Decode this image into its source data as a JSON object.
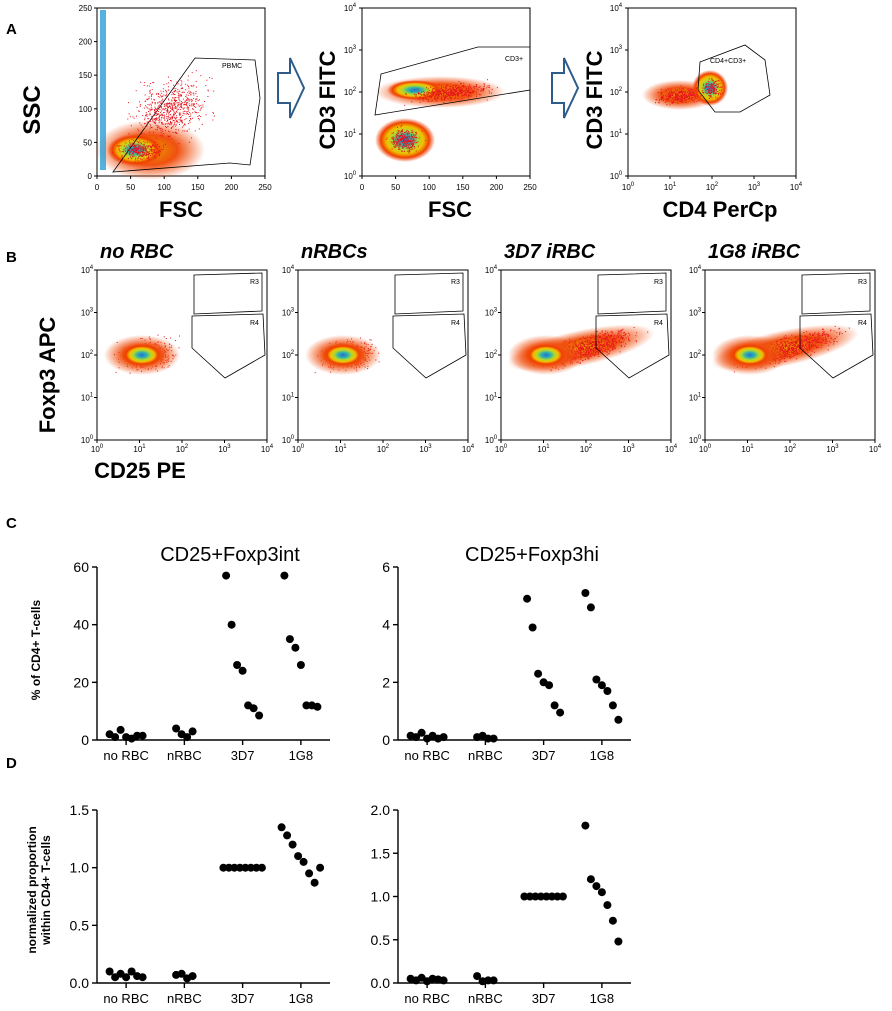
{
  "panel_labels": {
    "A": "A",
    "B": "B",
    "C": "C",
    "D": "D"
  },
  "panelA": {
    "plots": [
      {
        "ylabel": "SSC",
        "xlabel": "FSC",
        "gate": "PBMC",
        "xticks": [
          "0",
          "50",
          "100",
          "150",
          "200",
          "250"
        ],
        "yticks": [
          "0",
          "50",
          "100",
          "150",
          "200",
          "250"
        ],
        "log": false
      },
      {
        "ylabel": "CD3 FITC",
        "xlabel": "FSC",
        "gate": "CD3+",
        "xticks": [
          "0",
          "50",
          "100",
          "150",
          "200",
          "250"
        ],
        "log_y": true
      },
      {
        "ylabel": "CD3 FITC",
        "xlabel": "CD4 PerCp",
        "gate": "CD4+CD3+",
        "log": true
      }
    ]
  },
  "panelB": {
    "ylabel": "Foxp3 APC",
    "xlabel": "CD25 PE",
    "titles": [
      "no RBC",
      "nRBCs",
      "3D7 iRBC",
      "1G8 iRBC"
    ],
    "gates": [
      "R3",
      "R4"
    ]
  },
  "log_tick": {
    "base": "10",
    "exps": [
      "0",
      "1",
      "2",
      "3",
      "4"
    ]
  },
  "chart_data": [
    {
      "type": "scatter",
      "panel": "C",
      "title": "CD25+Foxp3int",
      "ylabel": "% of CD4+ T-cells",
      "categories": [
        "no RBC",
        "nRBC",
        "3D7",
        "1G8"
      ],
      "ylim": [
        0,
        60
      ],
      "yticks": [
        "0",
        "20",
        "40",
        "60"
      ],
      "points": [
        [
          2,
          1,
          3.5,
          1,
          0.5,
          1.5,
          1.5
        ],
        [
          4,
          2,
          1,
          3
        ],
        [
          57,
          40,
          26,
          24,
          12,
          11,
          8.5
        ],
        [
          57,
          35,
          32,
          26,
          12,
          12,
          11.5
        ]
      ]
    },
    {
      "type": "scatter",
      "panel": "C",
      "title": "CD25+Foxp3hi",
      "ylabel": "",
      "categories": [
        "no RBC",
        "nRBC",
        "3D7",
        "1G8"
      ],
      "ylim": [
        0,
        6
      ],
      "yticks": [
        "0",
        "2",
        "4",
        "6"
      ],
      "points": [
        [
          0.15,
          0.1,
          0.25,
          0.05,
          0.15,
          0.05,
          0.1
        ],
        [
          0.1,
          0.15,
          0.05,
          0.05
        ],
        [
          4.9,
          3.9,
          2.3,
          2.0,
          1.9,
          1.2,
          0.95
        ],
        [
          5.1,
          4.6,
          2.1,
          1.9,
          1.7,
          1.2,
          0.7
        ]
      ]
    },
    {
      "type": "scatter",
      "panel": "D",
      "title": "",
      "ylabel": "normalized proportion within CD4+ T-cells",
      "categories": [
        "no RBC",
        "nRBC",
        "3D7",
        "1G8"
      ],
      "ylim": [
        0,
        1.5
      ],
      "yticks": [
        "0.0",
        "0.5",
        "1.0",
        "1.5"
      ],
      "points": [
        [
          0.1,
          0.05,
          0.08,
          0.05,
          0.1,
          0.06,
          0.05
        ],
        [
          0.07,
          0.08,
          0.04,
          0.06
        ],
        [
          1,
          1,
          1,
          1,
          1,
          1,
          1,
          1
        ],
        [
          1.35,
          1.28,
          1.2,
          1.1,
          1.05,
          0.95,
          0.87,
          1.0
        ]
      ]
    },
    {
      "type": "scatter",
      "panel": "D",
      "title": "",
      "ylabel": "",
      "categories": [
        "no RBC",
        "nRBC",
        "3D7",
        "1G8"
      ],
      "ylim": [
        0,
        2
      ],
      "yticks": [
        "0.0",
        "0.5",
        "1.0",
        "1.5",
        "2.0"
      ],
      "points": [
        [
          0.05,
          0.03,
          0.06,
          0.02,
          0.05,
          0.04,
          0.03
        ],
        [
          0.08,
          0.02,
          0.03,
          0.03
        ],
        [
          1,
          1,
          1,
          1,
          1,
          1,
          1,
          1
        ],
        [
          1.82,
          1.2,
          1.12,
          1.05,
          0.9,
          0.72,
          0.48
        ]
      ]
    }
  ]
}
